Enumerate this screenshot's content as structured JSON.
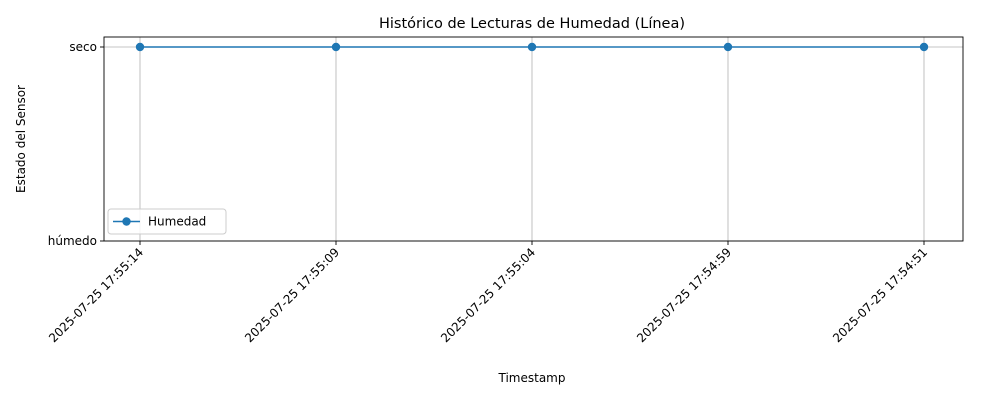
{
  "chart_data": {
    "type": "line",
    "title": "Histórico de Lecturas de Humedad (Línea)",
    "xlabel": "Timestamp",
    "ylabel": "Estado del Sensor",
    "categories": [
      "2025-07-25 17:55:14",
      "2025-07-25 17:55:09",
      "2025-07-25 17:55:04",
      "2025-07-25 17:54:59",
      "2025-07-25 17:54:51"
    ],
    "y_categories": [
      "húmedo",
      "seco"
    ],
    "series": [
      {
        "name": "Humedad",
        "values": [
          "seco",
          "seco",
          "seco",
          "seco",
          "seco"
        ],
        "color": "#1f77b4",
        "marker": "circle"
      }
    ],
    "grid": true,
    "legend_position": "lower-left"
  }
}
